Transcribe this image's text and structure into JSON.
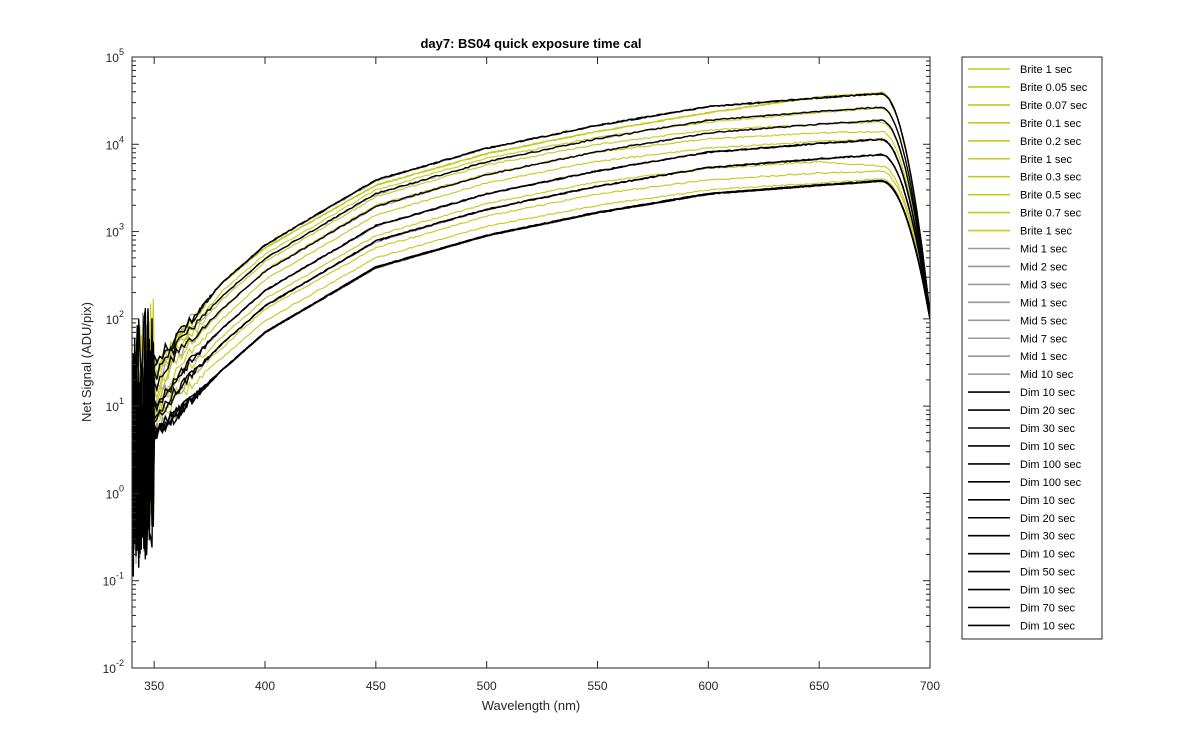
{
  "chart_data": {
    "type": "line",
    "title": "day7: BS04  quick exposure time cal",
    "xlabel": "Wavelength (nm)",
    "ylabel": "Net Signal (ADU/pix)",
    "xlim": [
      340,
      700
    ],
    "ylim": [
      0.01,
      100000
    ],
    "yscale": "log",
    "grid": false,
    "legend_position": "outside-right",
    "x_ticks": [
      "350",
      "400",
      "450",
      "500",
      "550",
      "600",
      "650",
      "700"
    ],
    "x_tick_values": [
      350,
      400,
      450,
      500,
      550,
      600,
      650,
      700
    ],
    "y_ticks": [
      {
        "base": "10",
        "exp": "-2",
        "value": 0.01
      },
      {
        "base": "10",
        "exp": "-1",
        "value": 0.1
      },
      {
        "base": "10",
        "exp": "0",
        "value": 1
      },
      {
        "base": "10",
        "exp": "1",
        "value": 10
      },
      {
        "base": "10",
        "exp": "2",
        "value": 100
      },
      {
        "base": "10",
        "exp": "3",
        "value": 1000
      },
      {
        "base": "10",
        "exp": "4",
        "value": 10000
      },
      {
        "base": "10",
        "exp": "5",
        "value": 100000
      }
    ],
    "colors": {
      "Brite": "#c8c81e",
      "Mid": "#999999",
      "Dim": "#000000"
    },
    "x": [
      350,
      360,
      380,
      400,
      450,
      500,
      550,
      600,
      650,
      678,
      700
    ],
    "series": [
      {
        "name": "Brite 1 sec",
        "group": "Brite",
        "values": [
          25,
          55,
          250,
          650,
          3400,
          7800,
          14000,
          23000,
          35000,
          39000,
          110
        ]
      },
      {
        "name": "Brite 0.05 sec",
        "group": "Brite",
        "values": [
          7,
          12,
          35,
          95,
          500,
          1150,
          2000,
          3000,
          3600,
          4000,
          100
        ]
      },
      {
        "name": "Brite 0.07 sec",
        "group": "Brite",
        "values": [
          8,
          15,
          45,
          130,
          650,
          1500,
          2700,
          3900,
          4700,
          4900,
          100
        ]
      },
      {
        "name": "Brite 0.1 sec",
        "group": "Brite",
        "values": [
          9,
          20,
          60,
          170,
          900,
          2100,
          3700,
          5300,
          6300,
          5600,
          100
        ]
      },
      {
        "name": "Brite 0.2 sec",
        "group": "Brite",
        "values": [
          10,
          28,
          95,
          280,
          1550,
          3600,
          6400,
          9000,
          10800,
          11500,
          100
        ]
      },
      {
        "name": "Brite 1 sec",
        "group": "Brite",
        "values": [
          25,
          55,
          250,
          650,
          3400,
          7800,
          14000,
          23000,
          35000,
          39000,
          110
        ]
      },
      {
        "name": "Brite 0.3 sec",
        "group": "Brite",
        "values": [
          12,
          35,
          120,
          360,
          2000,
          4600,
          8200,
          11500,
          13500,
          14000,
          100
        ]
      },
      {
        "name": "Brite 0.5 sec",
        "group": "Brite",
        "values": [
          14,
          40,
          160,
          450,
          2500,
          5800,
          10000,
          14500,
          17000,
          18000,
          100
        ]
      },
      {
        "name": "Brite 0.7 sec",
        "group": "Brite",
        "values": [
          18,
          45,
          200,
          550,
          3000,
          6900,
          12000,
          18000,
          23000,
          26000,
          100
        ]
      },
      {
        "name": "Brite 1 sec",
        "group": "Brite",
        "values": [
          25,
          55,
          250,
          650,
          3400,
          7800,
          14000,
          23000,
          35000,
          39000,
          110
        ]
      },
      {
        "name": "Mid 1 sec",
        "group": "Mid",
        "values": [
          5,
          8,
          25,
          70,
          380,
          900,
          1650,
          2700,
          3400,
          3800,
          100
        ]
      },
      {
        "name": "Mid 2 sec",
        "group": "Mid",
        "values": [
          7,
          14,
          50,
          140,
          760,
          1800,
          3300,
          5400,
          6800,
          7600,
          100
        ]
      },
      {
        "name": "Mid 3 sec",
        "group": "Mid",
        "values": [
          9,
          21,
          75,
          210,
          1140,
          2700,
          4950,
          8100,
          10200,
          11400,
          100
        ]
      },
      {
        "name": "Mid 1 sec",
        "group": "Mid",
        "values": [
          5,
          8,
          25,
          70,
          380,
          900,
          1650,
          2700,
          3400,
          3800,
          100
        ]
      },
      {
        "name": "Mid 5 sec",
        "group": "Mid",
        "values": [
          14,
          35,
          125,
          350,
          1900,
          4500,
          8250,
          13500,
          17000,
          19000,
          100
        ]
      },
      {
        "name": "Mid 7 sec",
        "group": "Mid",
        "values": [
          18,
          48,
          175,
          490,
          2660,
          6300,
          11550,
          18900,
          23800,
          26600,
          100
        ]
      },
      {
        "name": "Mid 1 sec",
        "group": "Mid",
        "values": [
          5,
          8,
          25,
          70,
          380,
          900,
          1650,
          2700,
          3400,
          3800,
          100
        ]
      },
      {
        "name": "Mid 10 sec",
        "group": "Mid",
        "values": [
          25,
          65,
          250,
          700,
          3800,
          9000,
          16500,
          27000,
          34000,
          38000,
          110
        ]
      },
      {
        "name": "Dim 10 sec",
        "group": "Dim",
        "values": [
          5,
          8,
          25,
          70,
          390,
          900,
          1650,
          2700,
          3400,
          3800,
          100
        ]
      },
      {
        "name": "Dim 20 sec",
        "group": "Dim",
        "values": [
          7,
          15,
          50,
          140,
          780,
          1800,
          3300,
          5400,
          6800,
          7600,
          100
        ]
      },
      {
        "name": "Dim 30 sec",
        "group": "Dim",
        "values": [
          9,
          22,
          75,
          210,
          1170,
          2700,
          4950,
          8100,
          10200,
          11400,
          100
        ]
      },
      {
        "name": "Dim 10 sec",
        "group": "Dim",
        "values": [
          5,
          8,
          25,
          70,
          390,
          900,
          1650,
          2700,
          3400,
          3800,
          100
        ]
      },
      {
        "name": "Dim 100 sec",
        "group": "Dim",
        "values": [
          30,
          60,
          250,
          700,
          3900,
          9000,
          16500,
          27000,
          34000,
          38000,
          110
        ]
      },
      {
        "name": "Dim 100 sec",
        "group": "Dim",
        "values": [
          30,
          60,
          250,
          700,
          3900,
          9000,
          16500,
          27000,
          34000,
          38000,
          110
        ]
      },
      {
        "name": "Dim 10 sec",
        "group": "Dim",
        "values": [
          5,
          8,
          25,
          70,
          390,
          900,
          1650,
          2700,
          3400,
          3800,
          100
        ]
      },
      {
        "name": "Dim 20 sec",
        "group": "Dim",
        "values": [
          7,
          15,
          50,
          140,
          780,
          1800,
          3300,
          5400,
          6800,
          7600,
          100
        ]
      },
      {
        "name": "Dim 30 sec",
        "group": "Dim",
        "values": [
          9,
          22,
          75,
          210,
          1170,
          2700,
          4950,
          8100,
          10200,
          11400,
          100
        ]
      },
      {
        "name": "Dim 10 sec",
        "group": "Dim",
        "values": [
          5,
          8,
          25,
          70,
          390,
          900,
          1650,
          2700,
          3400,
          3800,
          100
        ]
      },
      {
        "name": "Dim 50 sec",
        "group": "Dim",
        "values": [
          16,
          38,
          125,
          350,
          1950,
          4500,
          8250,
          13500,
          17000,
          19000,
          100
        ]
      },
      {
        "name": "Dim 10 sec",
        "group": "Dim",
        "values": [
          5,
          8,
          25,
          70,
          390,
          900,
          1650,
          2700,
          3400,
          3800,
          100
        ]
      },
      {
        "name": "Dim 70 sec",
        "group": "Dim",
        "values": [
          22,
          50,
          175,
          490,
          2730,
          6300,
          11550,
          18900,
          23800,
          26600,
          100
        ]
      },
      {
        "name": "Dim 10 sec",
        "group": "Dim",
        "values": [
          5,
          8,
          25,
          70,
          390,
          900,
          1650,
          2700,
          3400,
          3800,
          100
        ]
      }
    ]
  }
}
